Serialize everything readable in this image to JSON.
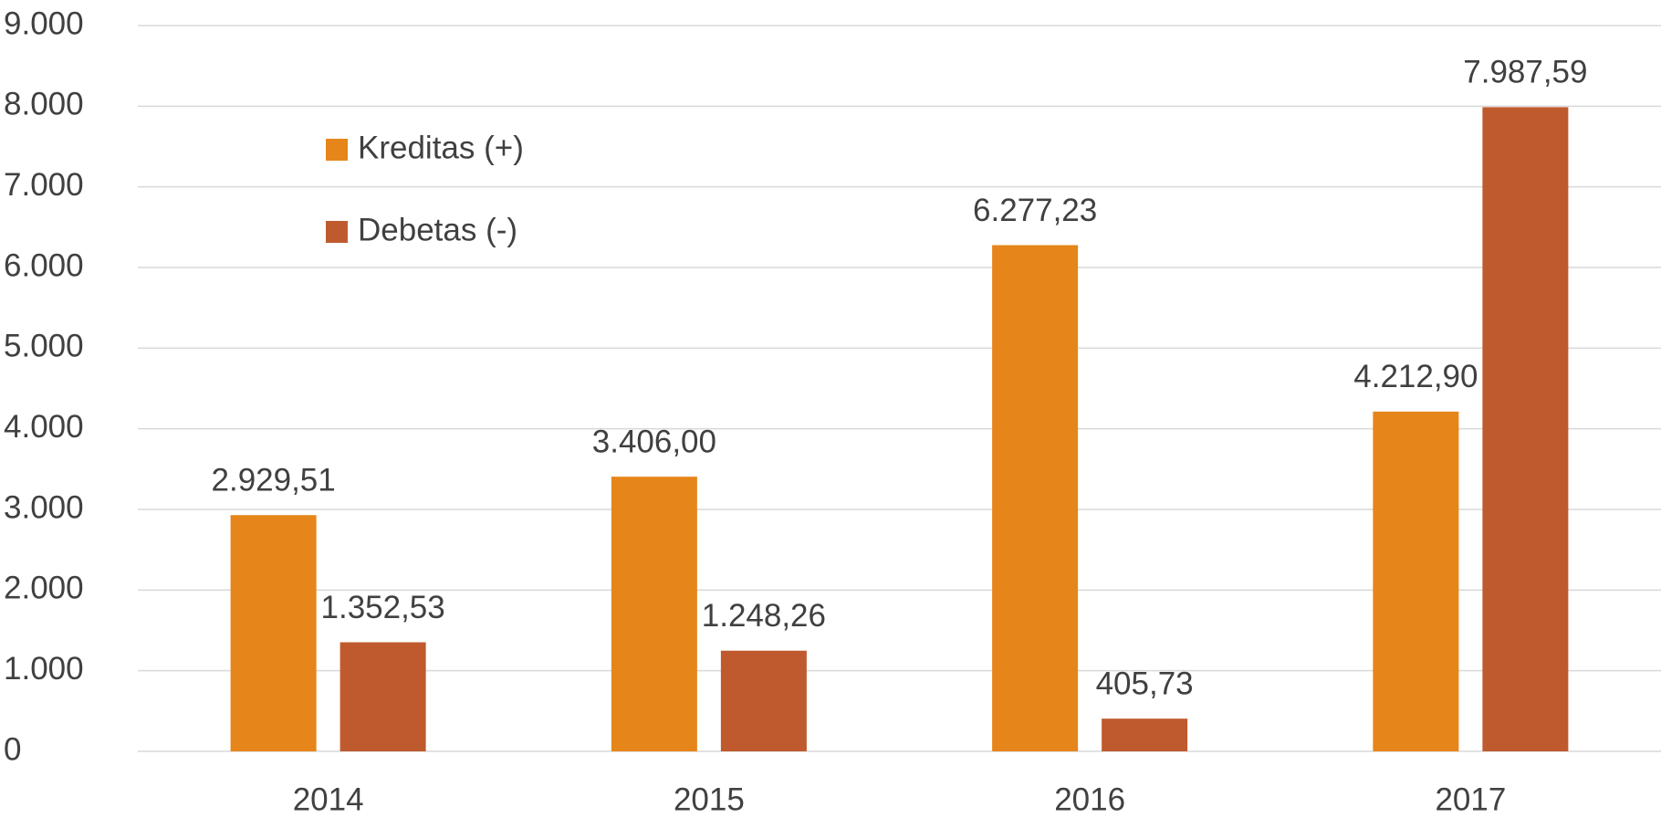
{
  "chart_data": {
    "type": "bar",
    "categories": [
      "2014",
      "2015",
      "2016",
      "2017"
    ],
    "series": [
      {
        "name": "Kreditas (+)",
        "color": "#e6851a",
        "values": [
          2929.51,
          3406.0,
          6277.23,
          4212.9
        ],
        "value_labels": [
          "2.929,51",
          "3.406,00",
          "6.277,23",
          "4.212,90"
        ]
      },
      {
        "name": "Debetas (-)",
        "color": "#bf5a2e",
        "values": [
          1352.53,
          1248.26,
          405.73,
          7987.59
        ],
        "value_labels": [
          "1.352,53",
          "1.248,26",
          "405,73",
          "7.987,59"
        ]
      }
    ],
    "ylim": [
      0,
      9000
    ],
    "yticks": [
      0,
      {
        "value": 1000,
        "label": "1.000"
      },
      {
        "value": 2000,
        "label": "2.000"
      },
      {
        "value": 3000,
        "label": "3.000"
      },
      {
        "value": 4000,
        "label": "4.000"
      },
      {
        "value": 5000,
        "label": "5.000"
      },
      {
        "value": 6000,
        "label": "6.000"
      },
      {
        "value": 7000,
        "label": "7.000"
      },
      {
        "value": 8000,
        "label": "8.000"
      },
      {
        "value": 9000,
        "label": "9.000"
      }
    ],
    "grid": true,
    "legend": "upper left"
  }
}
